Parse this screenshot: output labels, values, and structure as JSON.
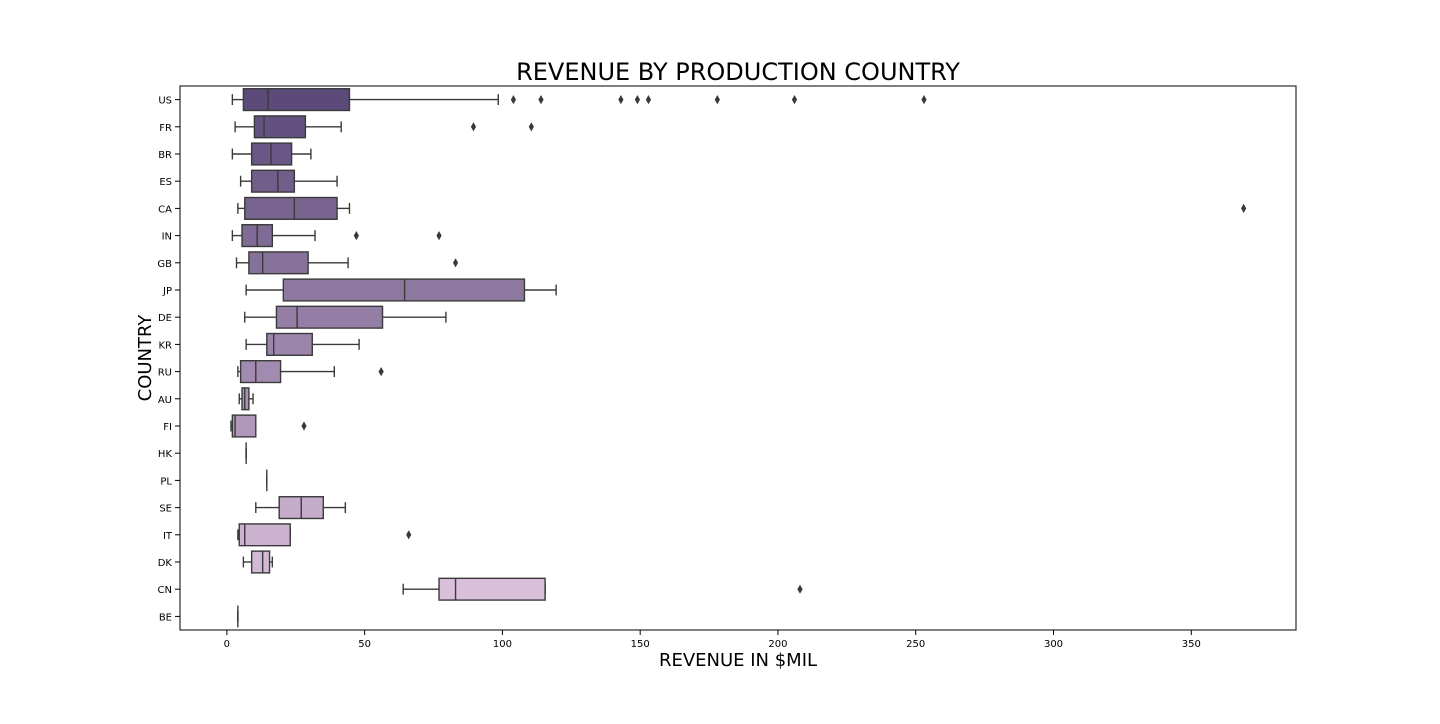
{
  "chart_data": {
    "type": "box",
    "orientation": "horizontal",
    "title": "REVENUE BY PRODUCTION COUNTRY",
    "xlabel": "REVENUE IN $MIL",
    "ylabel": "COUNTRY",
    "xlim": [
      -17,
      388
    ],
    "xticks": [
      0,
      50,
      100,
      150,
      200,
      250,
      300,
      350
    ],
    "grid": false,
    "legend": "none",
    "categories": [
      "US",
      "FR",
      "BR",
      "ES",
      "CA",
      "IN",
      "GB",
      "JP",
      "DE",
      "KR",
      "RU",
      "AU",
      "FI",
      "HK",
      "PL",
      "SE",
      "IT",
      "DK",
      "CN",
      "BE"
    ],
    "boxes": [
      {
        "label": "US",
        "whislo": 2,
        "q1": 6,
        "med": 15,
        "q3": 44.5,
        "whishi": 98.5,
        "fliers": [
          104,
          114,
          143,
          149,
          153,
          178,
          206,
          253
        ]
      },
      {
        "label": "FR",
        "whislo": 3,
        "q1": 10,
        "med": 13.5,
        "q3": 28.5,
        "whishi": 41.5,
        "fliers": [
          89.5,
          110.5
        ]
      },
      {
        "label": "BR",
        "whislo": 2,
        "q1": 9,
        "med": 16,
        "q3": 23.5,
        "whishi": 30.5,
        "fliers": []
      },
      {
        "label": "ES",
        "whislo": 5,
        "q1": 9,
        "med": 18.5,
        "q3": 24.5,
        "whishi": 40,
        "fliers": []
      },
      {
        "label": "CA",
        "whislo": 4,
        "q1": 6.5,
        "med": 24.5,
        "q3": 40,
        "whishi": 44.5,
        "fliers": [
          369
        ]
      },
      {
        "label": "IN",
        "whislo": 2,
        "q1": 5.5,
        "med": 11,
        "q3": 16.5,
        "whishi": 32,
        "fliers": [
          47,
          77
        ]
      },
      {
        "label": "GB",
        "whislo": 3.5,
        "q1": 8,
        "med": 13,
        "q3": 29.5,
        "whishi": 44,
        "fliers": [
          83
        ]
      },
      {
        "label": "JP",
        "whislo": 7,
        "q1": 20.5,
        "med": 64.5,
        "q3": 108,
        "whishi": 119.5,
        "fliers": []
      },
      {
        "label": "DE",
        "whislo": 6.5,
        "q1": 18,
        "med": 25.5,
        "q3": 56.5,
        "whishi": 79.5,
        "fliers": []
      },
      {
        "label": "KR",
        "whislo": 7,
        "q1": 14.5,
        "med": 17,
        "q3": 31,
        "whishi": 48,
        "fliers": []
      },
      {
        "label": "RU",
        "whislo": 4,
        "q1": 5,
        "med": 10.5,
        "q3": 19.5,
        "whishi": 39,
        "fliers": [
          56
        ]
      },
      {
        "label": "AU",
        "whislo": 4.5,
        "q1": 5.5,
        "med": 6.5,
        "q3": 8,
        "whishi": 9.5,
        "fliers": []
      },
      {
        "label": "FI",
        "whislo": 1.5,
        "q1": 2,
        "med": 3,
        "q3": 10.5,
        "whishi": 10.5,
        "fliers": [
          28
        ]
      },
      {
        "label": "HK",
        "whislo": 7,
        "q1": 7,
        "med": 7,
        "q3": 7,
        "whishi": 7,
        "fliers": []
      },
      {
        "label": "PL",
        "whislo": 14.5,
        "q1": 14.5,
        "med": 14.5,
        "q3": 14.5,
        "whishi": 14.5,
        "fliers": []
      },
      {
        "label": "SE",
        "whislo": 10.5,
        "q1": 19,
        "med": 27,
        "q3": 35,
        "whishi": 43,
        "fliers": []
      },
      {
        "label": "IT",
        "whislo": 4,
        "q1": 4.5,
        "med": 6.5,
        "q3": 23,
        "whishi": 23,
        "fliers": [
          66
        ]
      },
      {
        "label": "DK",
        "whislo": 6,
        "q1": 9,
        "med": 13,
        "q3": 15.5,
        "whishi": 16.5,
        "fliers": []
      },
      {
        "label": "CN",
        "whislo": 64,
        "q1": 77,
        "med": 83,
        "q3": 115.5,
        "whishi": 115.5,
        "fliers": [
          208
        ]
      },
      {
        "label": "BE",
        "whislo": 4,
        "q1": 4,
        "med": 4,
        "q3": 4,
        "whishi": 4,
        "fliers": []
      }
    ],
    "palette_start": "#5c4a7a",
    "palette_end": "#e1c6e0",
    "line_color": "#3a3a3a"
  }
}
